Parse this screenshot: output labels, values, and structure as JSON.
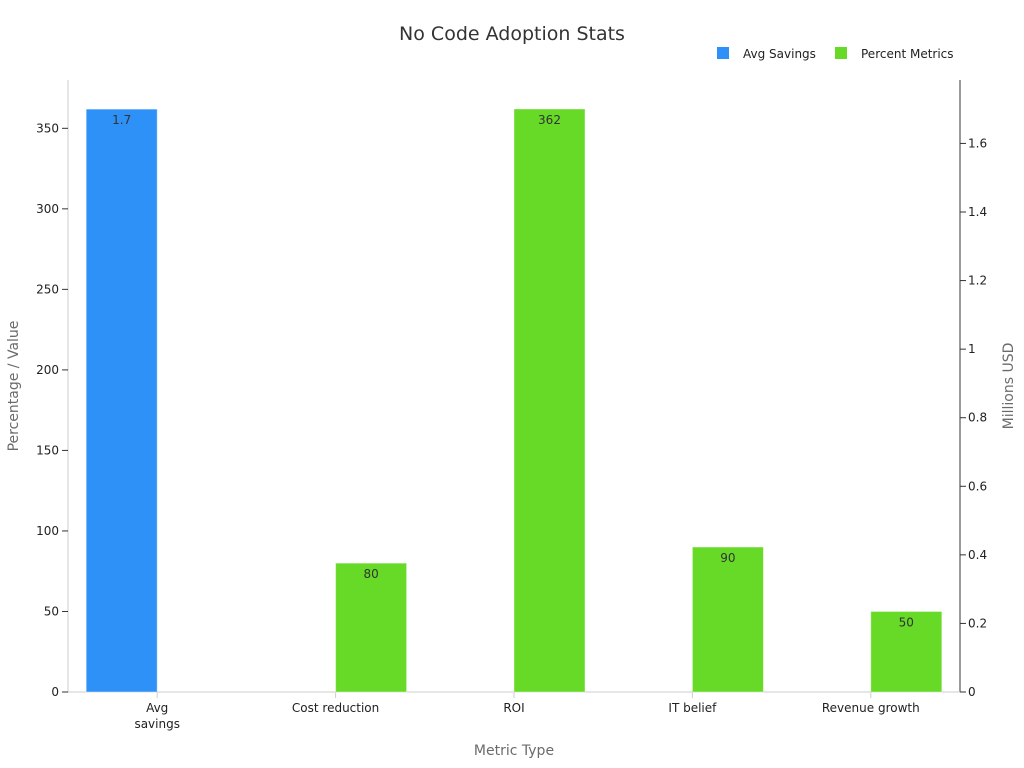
{
  "chart_data": {
    "type": "bar",
    "title": "No Code Adoption Stats",
    "xlabel": "Metric Type",
    "ylabel_left": "Percentage / Value",
    "ylabel_right": "Millions USD",
    "categories": [
      "Avg savings",
      "Cost reduction",
      "ROI",
      "IT belief",
      "Revenue growth"
    ],
    "category_lines": [
      [
        "Avg",
        "savings"
      ],
      [
        "Cost reduction"
      ],
      [
        "ROI"
      ],
      [
        "IT belief"
      ],
      [
        "Revenue growth"
      ]
    ],
    "series": [
      {
        "name": "Avg Savings",
        "axis": "right",
        "color": "#2E91F7",
        "values": [
          1.7,
          null,
          null,
          null,
          null
        ],
        "labels": [
          "1.7",
          null,
          null,
          null,
          null
        ]
      },
      {
        "name": "Percent Metrics",
        "axis": "left",
        "color": "#66DA26",
        "values": [
          null,
          80,
          362,
          90,
          50
        ],
        "labels": [
          null,
          "80",
          "362",
          "90",
          "50"
        ]
      }
    ],
    "ylim_left": [
      0,
      380
    ],
    "yticks_left": [
      0,
      50,
      100,
      150,
      200,
      250,
      300,
      350
    ],
    "ylim_right": [
      0,
      1.785
    ],
    "yticks_right": [
      0,
      0.2,
      0.4,
      0.6,
      0.8,
      1,
      1.2,
      1.4,
      1.6
    ],
    "yticks_right_labels": [
      "0",
      "0.2",
      "0.4",
      "0.6",
      "0.8",
      "1",
      "1.2",
      "1.4",
      "1.6"
    ],
    "grid": false,
    "legend_position": "top-right"
  }
}
